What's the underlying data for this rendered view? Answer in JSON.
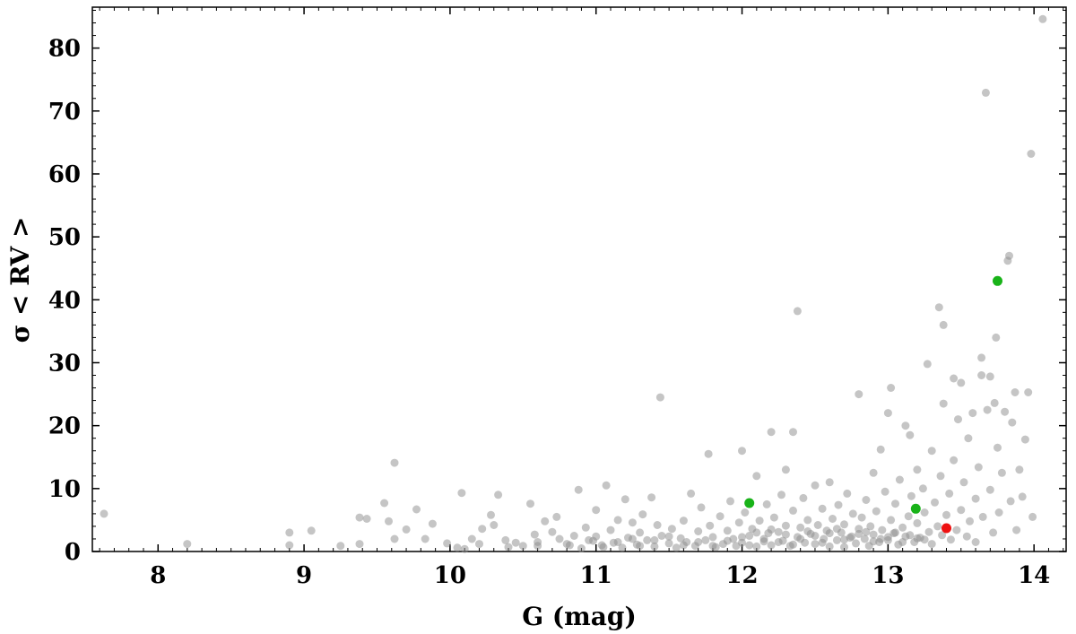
{
  "chart_data": {
    "type": "scatter",
    "title": "",
    "xlabel": "G (mag)",
    "ylabel": "σ < RV >",
    "xlim": [
      7.55,
      14.22
    ],
    "ylim": [
      0,
      86.5
    ],
    "xticks": [
      8,
      9,
      10,
      11,
      12,
      13,
      14
    ],
    "yticks": [
      0,
      10,
      20,
      30,
      40,
      50,
      60,
      70,
      80
    ],
    "grid": false,
    "legend": "none",
    "colors": {
      "base": "#8c8c8c",
      "green": "#19b319",
      "red": "#ee1111"
    },
    "series": [
      {
        "color": "base",
        "points": [
          [
            7.63,
            6.0
          ],
          [
            8.2,
            1.2
          ],
          [
            8.9,
            3.0
          ],
          [
            8.9,
            1.0
          ],
          [
            9.05,
            3.3
          ],
          [
            9.25,
            0.9
          ],
          [
            9.38,
            5.4
          ],
          [
            9.38,
            1.2
          ],
          [
            9.43,
            5.2
          ],
          [
            9.55,
            7.7
          ],
          [
            9.58,
            4.8
          ],
          [
            9.62,
            14.1
          ],
          [
            9.62,
            2.0
          ],
          [
            9.7,
            3.5
          ],
          [
            9.77,
            6.7
          ],
          [
            9.83,
            2.0
          ],
          [
            9.88,
            4.4
          ],
          [
            9.98,
            1.3
          ],
          [
            10.05,
            0.6
          ],
          [
            10.08,
            9.3
          ],
          [
            10.1,
            0.4
          ],
          [
            10.15,
            2.0
          ],
          [
            10.2,
            1.2
          ],
          [
            10.22,
            3.6
          ],
          [
            10.28,
            5.8
          ],
          [
            10.3,
            4.2
          ],
          [
            10.33,
            9.0
          ],
          [
            10.38,
            1.8
          ],
          [
            10.45,
            1.4
          ],
          [
            10.5,
            0.9
          ],
          [
            10.55,
            7.6
          ],
          [
            10.58,
            2.7
          ],
          [
            10.6,
            1.5
          ],
          [
            10.65,
            4.8
          ],
          [
            10.7,
            3.1
          ],
          [
            10.73,
            5.5
          ],
          [
            10.75,
            2.0
          ],
          [
            10.82,
            1.0
          ],
          [
            10.85,
            2.5
          ],
          [
            10.88,
            9.8
          ],
          [
            10.9,
            0.5
          ],
          [
            10.93,
            3.8
          ],
          [
            10.98,
            1.7
          ],
          [
            11.0,
            6.6
          ],
          [
            11.0,
            2.4
          ],
          [
            11.04,
            1.0
          ],
          [
            11.07,
            10.5
          ],
          [
            11.1,
            3.4
          ],
          [
            11.12,
            1.4
          ],
          [
            11.15,
            5.0
          ],
          [
            11.18,
            0.6
          ],
          [
            11.2,
            8.3
          ],
          [
            11.22,
            2.2
          ],
          [
            11.25,
            4.6
          ],
          [
            11.28,
            1.1
          ],
          [
            11.3,
            3.0
          ],
          [
            11.32,
            5.9
          ],
          [
            11.35,
            1.8
          ],
          [
            11.38,
            8.6
          ],
          [
            11.4,
            0.8
          ],
          [
            11.42,
            4.2
          ],
          [
            11.44,
            24.5
          ],
          [
            11.45,
            2.5
          ],
          [
            11.5,
            1.3
          ],
          [
            11.52,
            3.6
          ],
          [
            11.55,
            0.6
          ],
          [
            11.58,
            2.1
          ],
          [
            11.6,
            4.9
          ],
          [
            11.62,
            1.5
          ],
          [
            11.65,
            9.2
          ],
          [
            11.68,
            0.9
          ],
          [
            11.7,
            3.2
          ],
          [
            11.72,
            7.0
          ],
          [
            11.75,
            1.8
          ],
          [
            11.77,
            15.5
          ],
          [
            11.78,
            4.1
          ],
          [
            11.8,
            2.3
          ],
          [
            11.82,
            0.7
          ],
          [
            11.85,
            5.6
          ],
          [
            11.87,
            1.2
          ],
          [
            11.9,
            3.3
          ],
          [
            11.92,
            8.0
          ],
          [
            11.94,
            2.0
          ],
          [
            11.96,
            0.9
          ],
          [
            11.98,
            4.6
          ],
          [
            12.0,
            16.0
          ],
          [
            12.0,
            1.4
          ],
          [
            12.02,
            6.2
          ],
          [
            12.05,
            2.5
          ],
          [
            12.07,
            3.6
          ],
          [
            12.1,
            12.0
          ],
          [
            12.1,
            0.8
          ],
          [
            12.12,
            4.9
          ],
          [
            12.15,
            1.6
          ],
          [
            12.17,
            7.5
          ],
          [
            12.18,
            2.9
          ],
          [
            12.2,
            19.0
          ],
          [
            12.2,
            1.0
          ],
          [
            12.22,
            5.4
          ],
          [
            12.25,
            3.1
          ],
          [
            12.27,
            9.0
          ],
          [
            12.28,
            1.7
          ],
          [
            12.3,
            13.0
          ],
          [
            12.3,
            4.1
          ],
          [
            12.33,
            0.9
          ],
          [
            12.35,
            19.0
          ],
          [
            12.35,
            6.5
          ],
          [
            12.38,
            2.3
          ],
          [
            12.38,
            38.2
          ],
          [
            12.4,
            3.8
          ],
          [
            12.42,
            8.5
          ],
          [
            12.43,
            1.4
          ],
          [
            12.45,
            5.0
          ],
          [
            12.47,
            2.8
          ],
          [
            12.5,
            10.5
          ],
          [
            12.5,
            1.2
          ],
          [
            12.52,
            4.2
          ],
          [
            12.55,
            6.8
          ],
          [
            12.56,
            2.0
          ],
          [
            12.58,
            3.3
          ],
          [
            12.6,
            0.8
          ],
          [
            12.6,
            11.0
          ],
          [
            12.62,
            5.2
          ],
          [
            12.65,
            1.8
          ],
          [
            12.66,
            7.4
          ],
          [
            12.68,
            3.0
          ],
          [
            12.7,
            4.3
          ],
          [
            12.7,
            0.7
          ],
          [
            12.72,
            9.2
          ],
          [
            12.74,
            2.2
          ],
          [
            12.76,
            6.0
          ],
          [
            12.78,
            1.3
          ],
          [
            12.8,
            25.0
          ],
          [
            12.8,
            3.6
          ],
          [
            12.82,
            5.4
          ],
          [
            12.84,
            2.0
          ],
          [
            12.85,
            8.2
          ],
          [
            12.87,
            0.9
          ],
          [
            12.88,
            4.0
          ],
          [
            12.9,
            12.5
          ],
          [
            12.9,
            2.7
          ],
          [
            12.92,
            6.4
          ],
          [
            12.94,
            1.5
          ],
          [
            12.95,
            16.2
          ],
          [
            12.96,
            3.4
          ],
          [
            12.98,
            9.5
          ],
          [
            13.0,
            22.0
          ],
          [
            13.0,
            1.8
          ],
          [
            13.02,
            26.0
          ],
          [
            13.02,
            5.0
          ],
          [
            13.04,
            2.9
          ],
          [
            13.05,
            7.6
          ],
          [
            13.07,
            1.1
          ],
          [
            13.08,
            11.4
          ],
          [
            13.1,
            3.8
          ],
          [
            13.12,
            20.0
          ],
          [
            13.12,
            2.4
          ],
          [
            13.14,
            5.6
          ],
          [
            13.15,
            18.5
          ],
          [
            13.16,
            8.8
          ],
          [
            13.18,
            1.5
          ],
          [
            13.2,
            13.0
          ],
          [
            13.2,
            4.5
          ],
          [
            13.22,
            2.2
          ],
          [
            13.24,
            10.0
          ],
          [
            13.25,
            6.2
          ],
          [
            13.27,
            29.8
          ],
          [
            13.28,
            3.1
          ],
          [
            13.3,
            16.0
          ],
          [
            13.3,
            1.2
          ],
          [
            13.32,
            7.8
          ],
          [
            13.34,
            4.0
          ],
          [
            13.35,
            38.8
          ],
          [
            13.36,
            12.0
          ],
          [
            13.37,
            2.6
          ],
          [
            13.38,
            36.0
          ],
          [
            13.38,
            23.5
          ],
          [
            13.4,
            5.8
          ],
          [
            13.42,
            9.2
          ],
          [
            13.43,
            1.9
          ],
          [
            13.45,
            27.5
          ],
          [
            13.45,
            14.5
          ],
          [
            13.47,
            3.4
          ],
          [
            13.48,
            21.0
          ],
          [
            13.5,
            6.6
          ],
          [
            13.5,
            26.8
          ],
          [
            13.52,
            11.0
          ],
          [
            13.54,
            2.4
          ],
          [
            13.55,
            18.0
          ],
          [
            13.56,
            4.8
          ],
          [
            13.58,
            22.0
          ],
          [
            13.6,
            8.4
          ],
          [
            13.6,
            1.5
          ],
          [
            13.62,
            13.4
          ],
          [
            13.64,
            30.8
          ],
          [
            13.64,
            28.0
          ],
          [
            13.65,
            5.5
          ],
          [
            13.67,
            72.9
          ],
          [
            13.68,
            22.5
          ],
          [
            13.7,
            27.8
          ],
          [
            13.7,
            9.8
          ],
          [
            13.72,
            3.0
          ],
          [
            13.73,
            23.6
          ],
          [
            13.74,
            34.0
          ],
          [
            13.75,
            16.5
          ],
          [
            13.76,
            6.2
          ],
          [
            13.78,
            12.5
          ],
          [
            13.8,
            22.2
          ],
          [
            13.82,
            46.2
          ],
          [
            13.83,
            47.0
          ],
          [
            13.84,
            8.0
          ],
          [
            13.85,
            20.5
          ],
          [
            13.87,
            25.3
          ],
          [
            13.88,
            3.4
          ],
          [
            13.9,
            13.0
          ],
          [
            13.92,
            8.7
          ],
          [
            13.94,
            17.8
          ],
          [
            13.96,
            25.3
          ],
          [
            13.98,
            63.2
          ],
          [
            13.99,
            5.5
          ],
          [
            14.06,
            84.6
          ],
          [
            12.1,
            3.0
          ],
          [
            12.4,
            2.0
          ],
          [
            12.5,
            2.5
          ],
          [
            12.6,
            2.9
          ],
          [
            12.7,
            1.9
          ],
          [
            12.8,
            2.8
          ],
          [
            12.9,
            1.6
          ],
          [
            13.0,
            2.3
          ],
          [
            13.1,
            1.5
          ],
          [
            13.2,
            2.1
          ],
          [
            12.3,
            2.7
          ],
          [
            12.2,
            3.5
          ],
          [
            12.45,
            3.2
          ],
          [
            12.65,
            3.6
          ],
          [
            12.75,
            2.4
          ],
          [
            12.85,
            3.1
          ],
          [
            12.95,
            2.0
          ],
          [
            13.05,
            3.0
          ],
          [
            13.15,
            2.6
          ],
          [
            13.25,
            1.9
          ],
          [
            11.6,
            1.0
          ],
          [
            11.7,
            1.5
          ],
          [
            11.8,
            0.9
          ],
          [
            11.9,
            1.7
          ],
          [
            12.0,
            2.3
          ],
          [
            12.05,
            1.0
          ],
          [
            12.15,
            2.0
          ],
          [
            12.25,
            1.5
          ],
          [
            12.35,
            1.1
          ],
          [
            12.55,
            1.4
          ],
          [
            11.5,
            2.4
          ],
          [
            11.4,
            1.8
          ],
          [
            11.3,
            0.9
          ],
          [
            11.25,
            2.0
          ],
          [
            11.15,
            1.5
          ],
          [
            11.05,
            0.7
          ],
          [
            10.95,
            1.8
          ],
          [
            10.8,
            1.2
          ],
          [
            10.6,
            0.9
          ],
          [
            10.4,
            0.7
          ]
        ]
      },
      {
        "color": "green",
        "points": [
          [
            12.05,
            7.7
          ],
          [
            13.19,
            6.8
          ],
          [
            13.75,
            43.0
          ]
        ]
      },
      {
        "color": "red",
        "points": [
          [
            13.4,
            3.7
          ]
        ]
      }
    ]
  }
}
